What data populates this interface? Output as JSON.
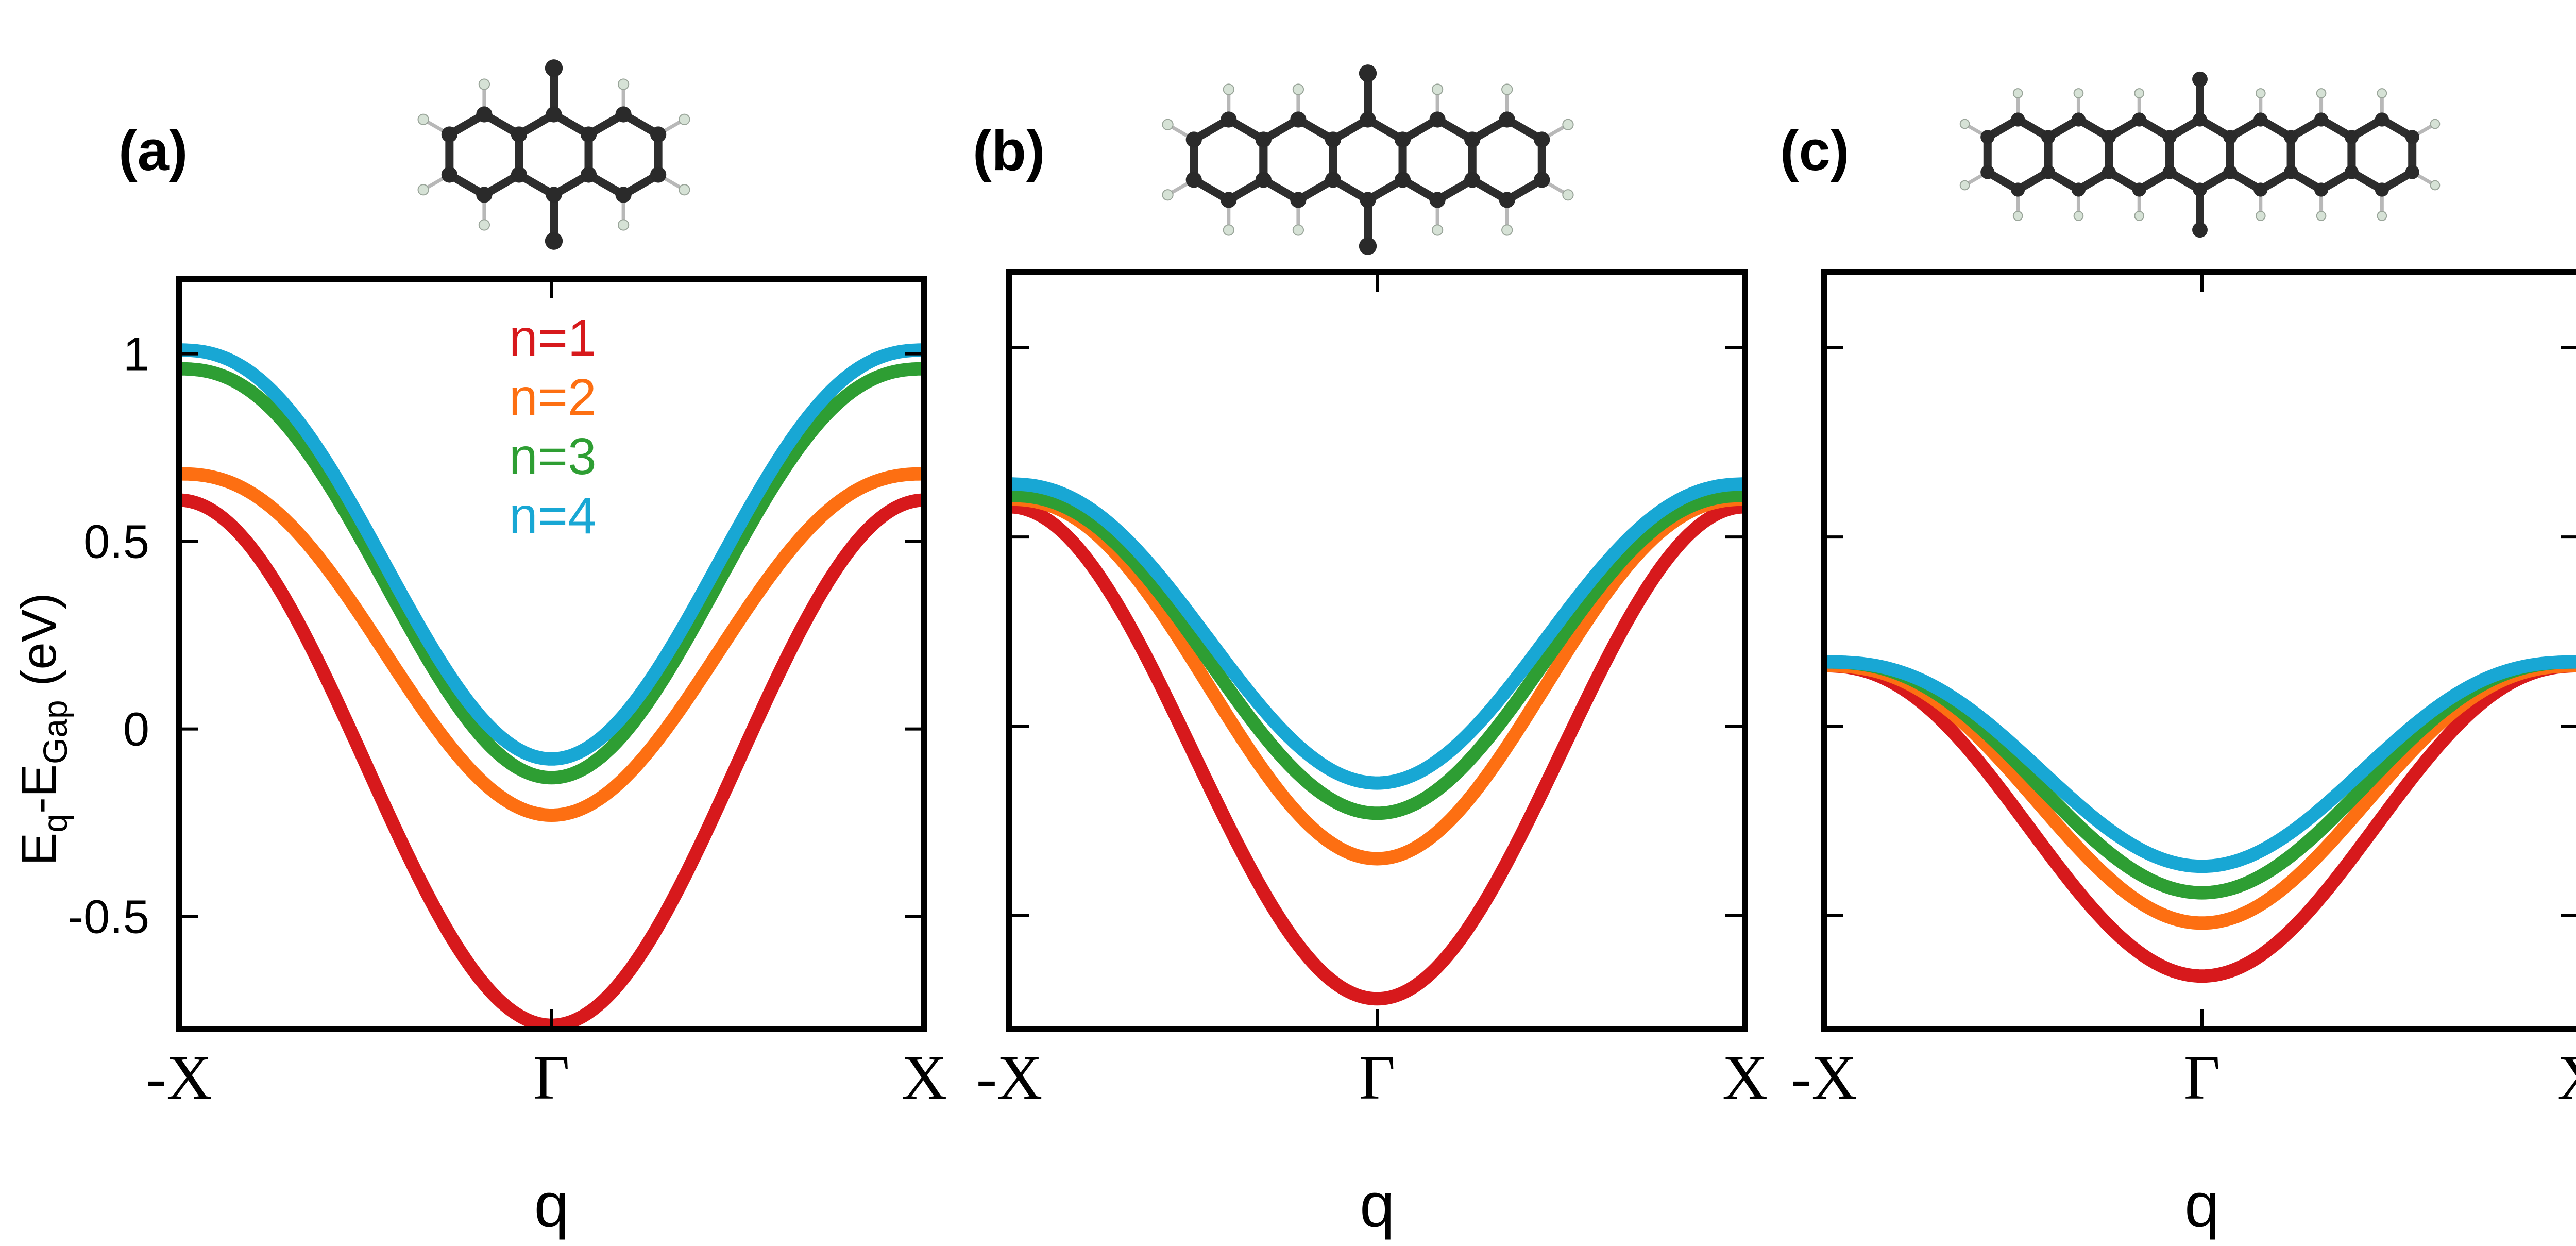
{
  "colors": {
    "n1": "#d7191c",
    "n2": "#fd6f12",
    "n3": "#2e9e33",
    "n4": "#18a7d4"
  },
  "legend": [
    "n=1",
    "n=2",
    "n=3",
    "n=4"
  ],
  "y_axis": {
    "label_main": "E",
    "label_sub1": "q",
    "label_sep": "-E",
    "label_sub2": "Gap",
    "label_unit": " (eV)",
    "ylim": [
      -0.8,
      1.2
    ],
    "ticks": [
      -0.5,
      0,
      0.5,
      1
    ],
    "tick_labels": [
      "-0.5",
      "0",
      "0.5",
      "1"
    ]
  },
  "x_axis": {
    "title": "q",
    "ticks": [
      -1,
      0,
      1
    ],
    "tick_labels": [
      "-X",
      "Γ",
      "X"
    ]
  },
  "molecules": [
    "anthracene-dimer-icon",
    "tetracene-dimer-icon",
    "hexacene-dimer-icon"
  ],
  "chart_data": [
    {
      "type": "line",
      "panel_label": "(a)",
      "x_range": [
        -1,
        1
      ],
      "series": [
        {
          "name": "n=1",
          "min": -0.79,
          "edge": 0.61,
          "shape": 1.0
        },
        {
          "name": "n=2",
          "min": -0.23,
          "edge": 0.68,
          "shape": 1.2
        },
        {
          "name": "n=3",
          "min": -0.13,
          "edge": 0.96,
          "shape": 1.2
        },
        {
          "name": "n=4",
          "min": -0.08,
          "edge": 1.01,
          "shape": 1.2
        }
      ]
    },
    {
      "type": "line",
      "panel_label": "(b)",
      "x_range": [
        -1,
        1
      ],
      "series": [
        {
          "name": "n=1",
          "min": -0.72,
          "edge": 0.58,
          "shape": 1.0
        },
        {
          "name": "n=2",
          "min": -0.35,
          "edge": 0.6,
          "shape": 1.15
        },
        {
          "name": "n=3",
          "min": -0.23,
          "edge": 0.61,
          "shape": 1.15
        },
        {
          "name": "n=4",
          "min": -0.15,
          "edge": 0.64,
          "shape": 1.15
        }
      ]
    },
    {
      "type": "line",
      "panel_label": "(c)",
      "x_range": [
        -1,
        1
      ],
      "series": [
        {
          "name": "n=1",
          "min": -0.66,
          "edge": 0.16,
          "shape": 1.15
        },
        {
          "name": "n=2",
          "min": -0.52,
          "edge": 0.16,
          "shape": 1.25
        },
        {
          "name": "n=3",
          "min": -0.44,
          "edge": 0.17,
          "shape": 1.25
        },
        {
          "name": "n=4",
          "min": -0.37,
          "edge": 0.17,
          "shape": 1.3
        }
      ]
    }
  ]
}
